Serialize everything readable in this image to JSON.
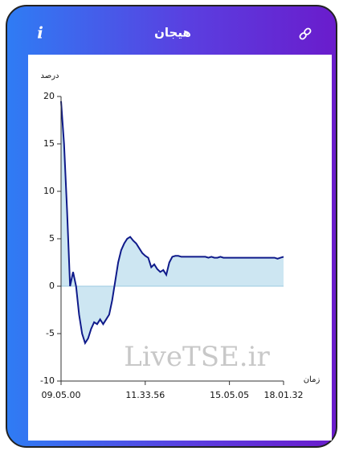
{
  "header": {
    "title": "هیجان",
    "info": "i"
  },
  "watermark": "LiveTSE.ir",
  "chart_data": {
    "type": "area",
    "y_label": "درصد",
    "x_label": "زمان",
    "categories": [
      "09.05.00",
      null,
      null,
      null,
      null,
      null,
      null,
      null,
      null,
      null,
      null,
      null,
      null,
      null,
      null,
      null,
      null,
      null,
      null,
      null,
      null,
      null,
      null,
      null,
      null,
      null,
      null,
      null,
      "11.33.56",
      null,
      null,
      null,
      null,
      null,
      null,
      null,
      null,
      null,
      null,
      null,
      null,
      null,
      null,
      null,
      null,
      null,
      null,
      null,
      null,
      null,
      null,
      null,
      null,
      null,
      null,
      null,
      "15.05.05",
      null,
      null,
      null,
      null,
      null,
      null,
      null,
      null,
      null,
      null,
      null,
      null,
      null,
      null,
      null,
      null,
      null,
      "18.01.32"
    ],
    "values": [
      19.5,
      15,
      8,
      0,
      1.5,
      0,
      -3,
      -5,
      -6,
      -5.5,
      -4.5,
      -3.8,
      -4,
      -3.5,
      -4,
      -3.5,
      -3,
      -1.5,
      0.5,
      2.5,
      3.8,
      4.5,
      5,
      5.2,
      4.8,
      4.5,
      4,
      3.5,
      3.2,
      3,
      2,
      2.3,
      1.8,
      1.5,
      1.7,
      1.2,
      2.5,
      3.1,
      3.2,
      3.2,
      3.1,
      3.1,
      3.1,
      3.1,
      3.1,
      3.1,
      3.1,
      3.1,
      3.1,
      3.0,
      3.1,
      3.0,
      3.0,
      3.1,
      3.0,
      3.0,
      3.0,
      3.0,
      3.0,
      3.0,
      3.0,
      3.0,
      3.0,
      3.0,
      3.0,
      3.0,
      3.0,
      3.0,
      3.0,
      3.0,
      3.0,
      3.0,
      2.9,
      3.0,
      3.1
    ],
    "color": "#0f1a8a",
    "fill_color": "#cde6f2",
    "ylim": [
      -10,
      20
    ],
    "yticks": [
      -10,
      -5,
      0,
      5,
      10,
      15,
      20
    ]
  }
}
